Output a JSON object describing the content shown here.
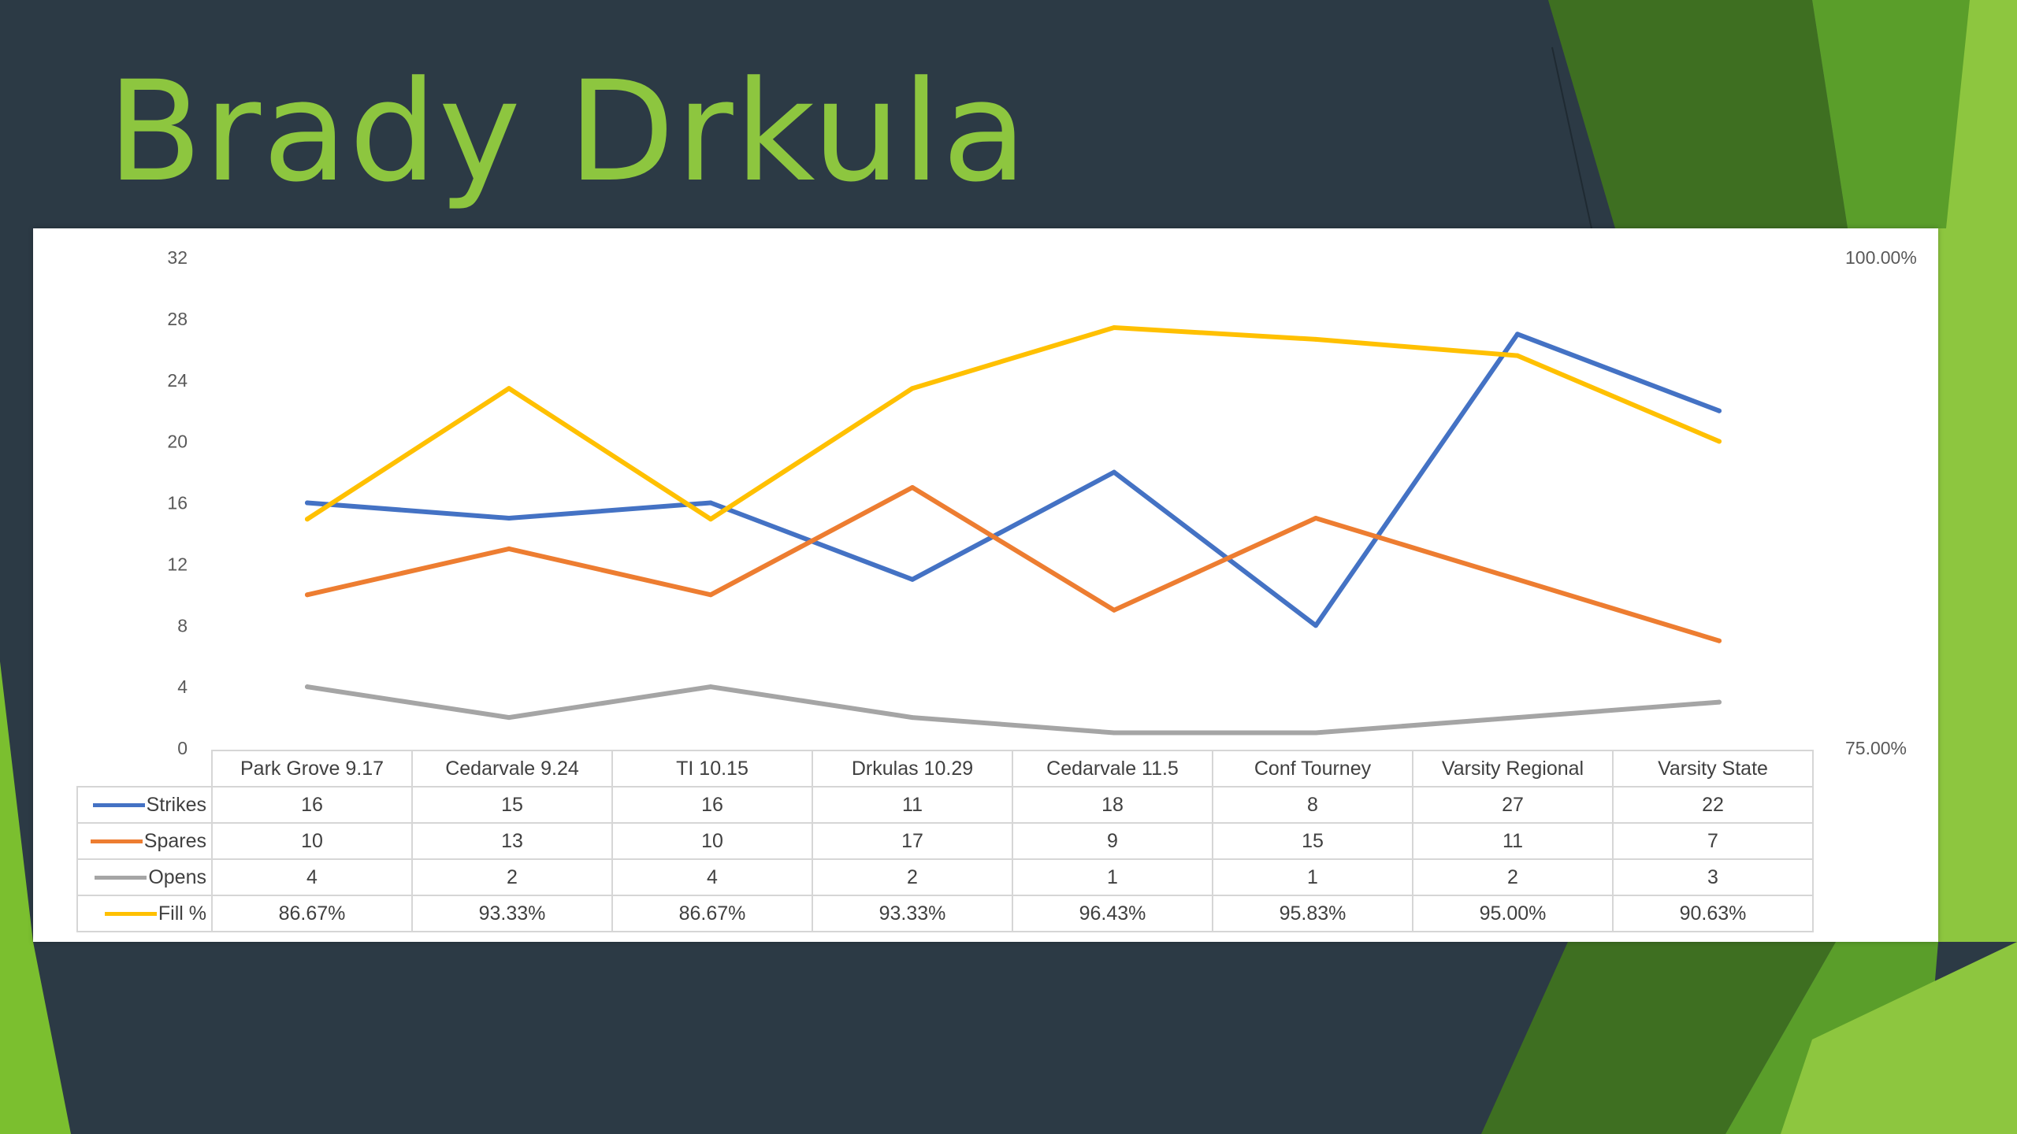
{
  "slide": {
    "title": "Brady Drkula"
  },
  "theme": {
    "background": "#2c3a45",
    "title_color": "#8dc63f",
    "accent_dark_green": "#3e6f21",
    "accent_green": "#5a9e2a",
    "accent_light_green": "#8dc63f"
  },
  "chart_data": {
    "type": "line",
    "title": "",
    "categories": [
      "Park Grove 9.17",
      "Cedarvale 9.24",
      "TI 10.15",
      "Drkulas 10.29",
      "Cedarvale 11.5",
      "Conf Tourney",
      "Varsity Regional",
      "Varsity State"
    ],
    "series": [
      {
        "name": "Strikes",
        "axis": "left",
        "color": "#4472c4",
        "values": [
          16,
          15,
          16,
          11,
          18,
          8,
          27,
          22
        ],
        "labels": [
          "16",
          "15",
          "16",
          "11",
          "18",
          "8",
          "27",
          "22"
        ]
      },
      {
        "name": "Spares",
        "axis": "left",
        "color": "#ed7d31",
        "values": [
          10,
          13,
          10,
          17,
          9,
          15,
          11,
          7
        ],
        "labels": [
          "10",
          "13",
          "10",
          "17",
          "9",
          "15",
          "11",
          "7"
        ]
      },
      {
        "name": "Opens",
        "axis": "left",
        "color": "#a5a5a5",
        "values": [
          4,
          2,
          4,
          2,
          1,
          1,
          2,
          3
        ],
        "labels": [
          "4",
          "2",
          "4",
          "2",
          "1",
          "1",
          "2",
          "3"
        ]
      },
      {
        "name": "Fill %",
        "axis": "right",
        "color": "#ffc000",
        "values": [
          86.67,
          93.33,
          86.67,
          93.33,
          96.43,
          95.83,
          95.0,
          90.63
        ],
        "labels": [
          "86.67%",
          "93.33%",
          "86.67%",
          "93.33%",
          "96.43%",
          "95.83%",
          "95.00%",
          "90.63%"
        ]
      }
    ],
    "y_left": {
      "min": 0,
      "max": 32,
      "ticks": [
        "0",
        "4",
        "8",
        "12",
        "16",
        "20",
        "24",
        "28",
        "32"
      ]
    },
    "y_right": {
      "min": 75,
      "max": 100,
      "ticks": [
        "75.00%",
        "100.00%"
      ]
    },
    "grid": false,
    "legend": "data-table"
  }
}
